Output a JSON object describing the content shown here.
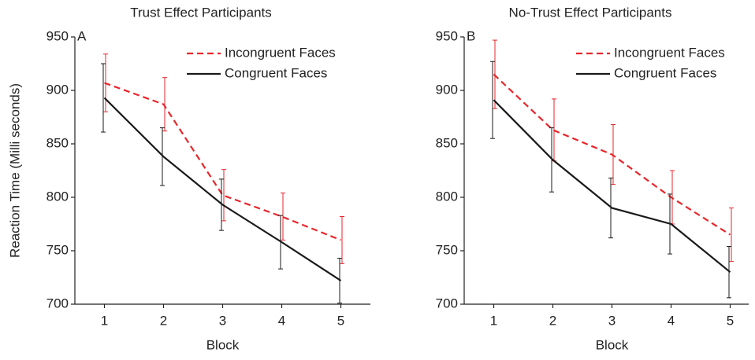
{
  "chart_data": [
    {
      "type": "line",
      "title": "Trust Effect Participants",
      "annotation": "A",
      "x_label": "Block",
      "y_label": "Reaction Time (Milli seconds)",
      "x": [
        1,
        2,
        3,
        4,
        5
      ],
      "xlim": [
        0.5,
        5.5
      ],
      "xticks": [
        1,
        2,
        3,
        4,
        5
      ],
      "ylim": [
        700,
        950
      ],
      "yticks": [
        700,
        750,
        800,
        850,
        900,
        950
      ],
      "legend": "upper right",
      "series": [
        {
          "name": "Incongruent Faces",
          "color": "#e8262b",
          "linestyle": "dashed",
          "values": [
            907,
            887,
            802,
            782,
            760
          ],
          "errors": [
            27,
            25,
            24,
            22,
            22
          ]
        },
        {
          "name": "Congruent Faces",
          "color": "#1a1a1a",
          "linestyle": "solid",
          "values": [
            893,
            838,
            793,
            758,
            722
          ],
          "errors": [
            32,
            27,
            24,
            25,
            21
          ]
        }
      ]
    },
    {
      "type": "line",
      "title": "No-Trust Effect Participants",
      "annotation": "B",
      "x_label": "Block",
      "x": [
        1,
        2,
        3,
        4,
        5
      ],
      "xlim": [
        0.5,
        5.5
      ],
      "xticks": [
        1,
        2,
        3,
        4,
        5
      ],
      "ylim": [
        700,
        950
      ],
      "yticks": [
        700,
        750,
        800,
        850,
        900,
        950
      ],
      "legend": "upper right",
      "series": [
        {
          "name": "Incongruent Faces",
          "color": "#e8262b",
          "linestyle": "dashed",
          "values": [
            915,
            863,
            840,
            800,
            765
          ],
          "errors": [
            32,
            29,
            28,
            25,
            25
          ]
        },
        {
          "name": "Congruent Faces",
          "color": "#1a1a1a",
          "linestyle": "solid",
          "values": [
            891,
            835,
            790,
            775,
            730
          ],
          "errors": [
            36,
            30,
            28,
            28,
            24
          ]
        }
      ]
    }
  ]
}
